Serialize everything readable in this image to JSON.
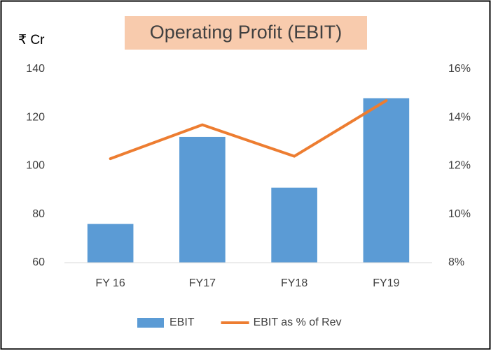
{
  "chart_data": {
    "type": "bar_line",
    "title": "Operating Profit (EBIT)",
    "y_label": "₹ Cr",
    "categories": [
      "FY 16",
      "FY17",
      "FY18",
      "FY19"
    ],
    "series": [
      {
        "name": "EBIT",
        "type": "bar",
        "color": "#5b9bd5",
        "values": [
          76,
          112,
          91,
          128
        ]
      },
      {
        "name": "EBIT as % of Rev",
        "type": "line",
        "axis": "y2",
        "color": "#ed7d31",
        "values": [
          12.3,
          13.7,
          12.4,
          14.7
        ]
      }
    ],
    "ylim": [
      60,
      140
    ],
    "yticks": [
      60,
      80,
      100,
      120,
      140
    ],
    "y2lim": [
      8,
      16
    ],
    "y2ticks": [
      {
        "value": 8,
        "label": "8%"
      },
      {
        "value": 10,
        "label": "10%"
      },
      {
        "value": 12,
        "label": "12%"
      },
      {
        "value": 14,
        "label": "14%"
      },
      {
        "value": 16,
        "label": "16%"
      }
    ],
    "grid": false,
    "legend": "bottom"
  }
}
